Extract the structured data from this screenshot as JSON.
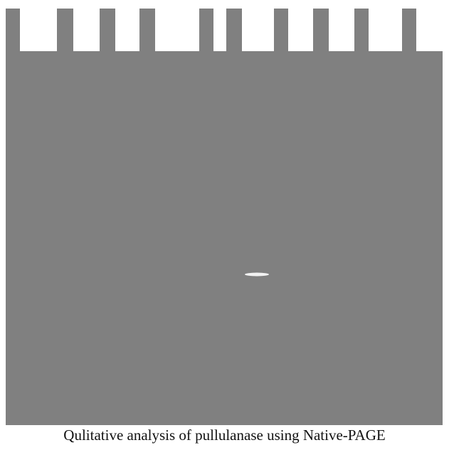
{
  "caption": "Qulitative analysis of pullulanase using Native-PAGE"
}
